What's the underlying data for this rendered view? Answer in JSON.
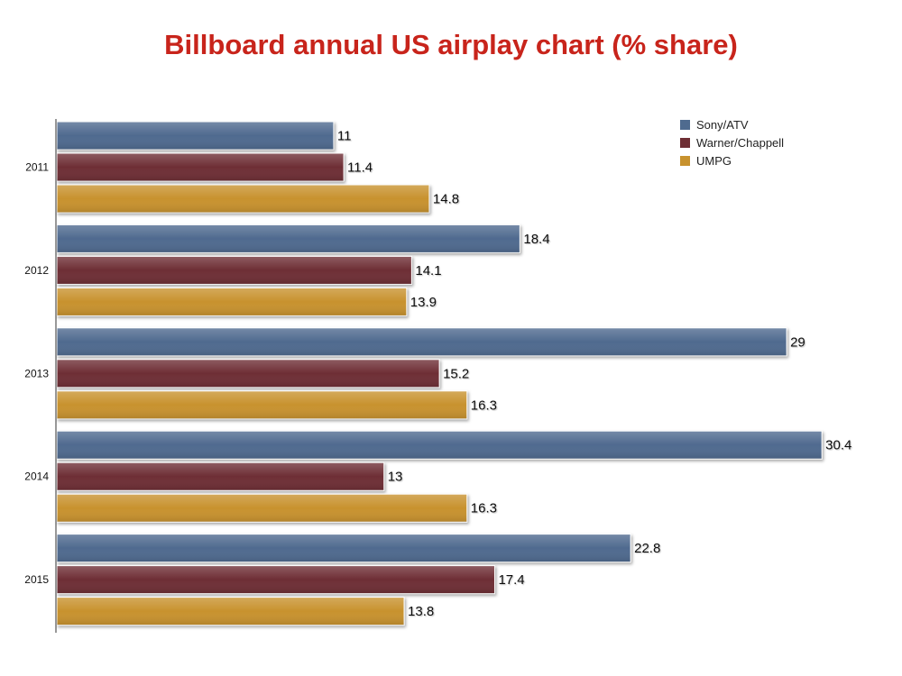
{
  "chart_data": {
    "type": "bar",
    "orientation": "horizontal",
    "title": "Billboard annual US airplay chart (% share)",
    "xlabel": "",
    "ylabel": "",
    "categories": [
      "2011",
      "2012",
      "2013",
      "2014",
      "2015"
    ],
    "series": [
      {
        "name": "Sony/ATV",
        "color": "#4f6b8f",
        "values": [
          11,
          18.4,
          29,
          30.4,
          22.8
        ]
      },
      {
        "name": "Warner/Chappell",
        "color": "#6e2e34",
        "values": [
          11.4,
          14.1,
          15.2,
          13,
          17.4
        ]
      },
      {
        "name": "UMPG",
        "color": "#c8922e",
        "values": [
          14.8,
          13.9,
          16.3,
          16.3,
          13.8
        ]
      }
    ],
    "value_labels": [
      [
        "11",
        "18.4",
        "29",
        "30.4",
        "22.8"
      ],
      [
        "11.4",
        "14.1",
        "15.2",
        "13",
        "17.4"
      ],
      [
        "14.8",
        "13.9",
        "16.3",
        "16.3",
        "13.8"
      ]
    ],
    "xlim": [
      0,
      30.4
    ],
    "grid": false,
    "legend_position": "top-right"
  }
}
